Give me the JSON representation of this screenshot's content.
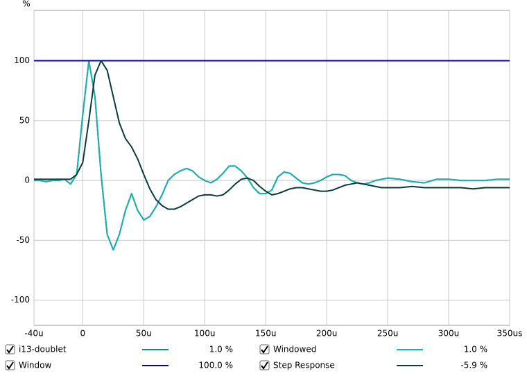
{
  "chart_data": {
    "type": "line",
    "y_label": "%",
    "x": [
      -40,
      -35,
      -30,
      -25,
      -20,
      -15,
      -10,
      -5,
      0,
      5,
      10,
      15,
      20,
      25,
      30,
      35,
      40,
      45,
      50,
      55,
      60,
      65,
      70,
      75,
      80,
      85,
      90,
      95,
      100,
      105,
      110,
      115,
      120,
      125,
      130,
      135,
      140,
      145,
      150,
      155,
      160,
      165,
      170,
      175,
      180,
      185,
      190,
      195,
      200,
      205,
      210,
      215,
      220,
      225,
      230,
      235,
      240,
      245,
      250,
      260,
      270,
      280,
      290,
      300,
      310,
      320,
      330,
      340,
      350
    ],
    "xlim": [
      -40,
      350
    ],
    "xticks": [
      {
        "value": -40,
        "label": "-40u"
      },
      0,
      {
        "value": 50,
        "label": "50u"
      },
      {
        "value": 100,
        "label": "100u"
      },
      {
        "value": 150,
        "label": "150u"
      },
      {
        "value": 200,
        "label": "200u"
      },
      {
        "value": 250,
        "label": "250u"
      },
      {
        "value": 300,
        "label": "300u"
      },
      {
        "value": 350,
        "label": "350us"
      }
    ],
    "ylim": [
      -121,
      142
    ],
    "yticks": [
      -100,
      -50,
      0,
      50,
      100
    ],
    "grid": true,
    "series": [
      {
        "name": "i13-doublet",
        "color": "#1a8a80",
        "legend_value": "1.0 %",
        "values": [
          0,
          0,
          -1,
          0,
          0,
          1,
          -3,
          5,
          55,
          100,
          70,
          5,
          -45,
          -58,
          -45,
          -25,
          -11,
          -25,
          -33,
          -30,
          -22,
          -12,
          0,
          5,
          8,
          10,
          8,
          3,
          0,
          -2,
          1,
          6,
          12,
          12,
          8,
          2,
          -6,
          -11,
          -11,
          -8,
          3,
          7,
          6,
          2,
          -2,
          -3,
          -2,
          0,
          3,
          5,
          5,
          4,
          0,
          -2,
          -3,
          -2,
          0,
          1,
          2,
          1,
          -1,
          -2,
          1,
          1,
          0,
          0,
          0,
          1,
          1
        ]
      },
      {
        "name": "Windowed",
        "color": "#1ab0b0",
        "legend_value": "1.0 %",
        "values": [
          0,
          0,
          -1,
          0,
          0,
          1,
          -3,
          5,
          55,
          100,
          70,
          5,
          -45,
          -58,
          -45,
          -25,
          -11,
          -25,
          -33,
          -30,
          -22,
          -12,
          0,
          5,
          8,
          10,
          8,
          3,
          0,
          -2,
          1,
          6,
          12,
          12,
          8,
          2,
          -6,
          -11,
          -11,
          -8,
          3,
          7,
          6,
          2,
          -2,
          -3,
          -2,
          0,
          3,
          5,
          5,
          4,
          0,
          -2,
          -3,
          -2,
          0,
          1,
          2,
          1,
          -1,
          -2,
          1,
          1,
          0,
          0,
          0,
          1,
          1
        ]
      },
      {
        "name": "Window",
        "color": "#0000c0",
        "legend_value": "100.0 %",
        "x": [
          -40,
          350
        ],
        "values": [
          100,
          100
        ]
      },
      {
        "name": "Step Response",
        "color": "#0a3a3a",
        "legend_value": "-5.9 %",
        "values": [
          1,
          1,
          1,
          1,
          1,
          1,
          1,
          5,
          15,
          50,
          88,
          100,
          92,
          70,
          48,
          35,
          28,
          18,
          5,
          -7,
          -16,
          -21,
          -24,
          -24,
          -22,
          -19,
          -16,
          -13,
          -12,
          -12,
          -13,
          -12,
          -8,
          -3,
          1,
          2,
          0,
          -5,
          -9,
          -12,
          -11,
          -9,
          -7,
          -6,
          -6,
          -7,
          -8,
          -9,
          -9,
          -8,
          -6,
          -4,
          -3,
          -2,
          -3,
          -4,
          -5,
          -6,
          -6,
          -6,
          -5,
          -6,
          -6,
          -6,
          -6,
          -7,
          -6,
          -6,
          -6
        ]
      }
    ]
  }
}
